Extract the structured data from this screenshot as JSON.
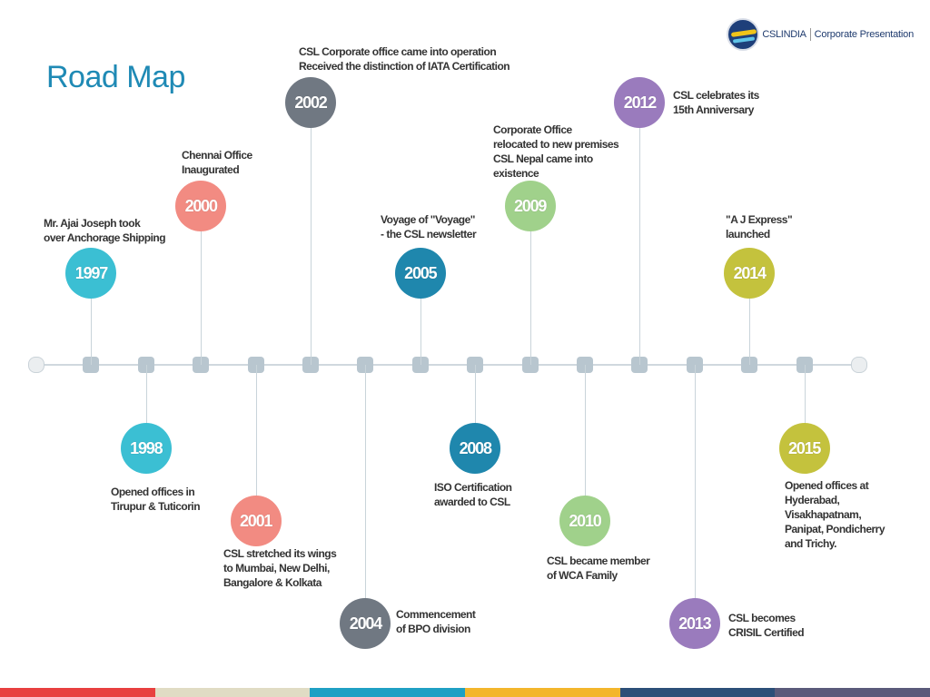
{
  "title": "Road Map",
  "brand": {
    "name": "CSLINDIA",
    "subtitle": "Corporate Presentation"
  },
  "colors": {
    "teal": "#3bbfd3",
    "salmon": "#f28b82",
    "gray": "#707882",
    "blue": "#1f87ad",
    "green": "#a0d18b",
    "purple": "#9a7bbd",
    "olive": "#c4c23d",
    "title": "#1f8ab5"
  },
  "milestones": [
    {
      "year": "1997",
      "side": "above",
      "color": "#3bbfd3",
      "lines": [
        "Mr. Ajai Joseph took",
        "over Anchorage Shipping"
      ]
    },
    {
      "year": "1998",
      "side": "below",
      "color": "#3bbfd3",
      "lines": [
        "Opened offices in",
        "Tirupur & Tuticorin"
      ]
    },
    {
      "year": "2000",
      "side": "above",
      "color": "#f28b82",
      "lines": [
        "Chennai Office",
        "Inaugurated"
      ]
    },
    {
      "year": "2001",
      "side": "below",
      "color": "#f28b82",
      "lines": [
        "CSL stretched its wings",
        "to Mumbai, New Delhi,",
        "Bangalore & Kolkata"
      ]
    },
    {
      "year": "2002",
      "side": "above",
      "color": "#707882",
      "lines": [
        "CSL Corporate office came into operation",
        "Received the distinction of IATA Certification"
      ]
    },
    {
      "year": "2004",
      "side": "below",
      "color": "#707882",
      "lines": [
        "Commencement",
        "of BPO division"
      ]
    },
    {
      "year": "2005",
      "side": "above",
      "color": "#1f87ad",
      "lines": [
        "Voyage of \"Voyage\"",
        "- the CSL newsletter"
      ]
    },
    {
      "year": "2008",
      "side": "below",
      "color": "#1f87ad",
      "lines": [
        "ISO Certification",
        "awarded to CSL"
      ]
    },
    {
      "year": "2009",
      "side": "above",
      "color": "#a0d18b",
      "lines": [
        " Corporate Office",
        "relocated to new premises",
        "CSL Nepal came into",
        "existence"
      ]
    },
    {
      "year": "2010",
      "side": "below",
      "color": "#a0d18b",
      "lines": [
        "CSL became member",
        "of WCA Family"
      ]
    },
    {
      "year": "2012",
      "side": "above",
      "color": "#9a7bbd",
      "lines": [
        "CSL celebrates its",
        "15th Anniversary"
      ]
    },
    {
      "year": "2013",
      "side": "below",
      "color": "#9a7bbd",
      "lines": [
        "CSL becomes",
        "CRISIL Certified"
      ]
    },
    {
      "year": "2014",
      "side": "above",
      "color": "#c4c23d",
      "lines": [
        "\"A J Express\"",
        " launched"
      ]
    },
    {
      "year": "2015",
      "side": "below",
      "color": "#c4c23d",
      "lines": [
        "Opened offices at",
        "Hyderabad,",
        "Visakhapatnam,",
        "Panipat, Pondicherry",
        "and Trichy."
      ]
    }
  ],
  "footer_colors": [
    "#e8403f",
    "#e0dcc4",
    "#1fa0c4",
    "#f3b62c",
    "#2c4f78",
    "#5a5a7a"
  ]
}
